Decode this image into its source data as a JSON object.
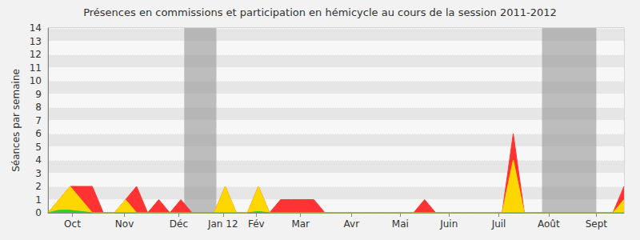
{
  "chart_data": {
    "type": "area",
    "title": "Présences en commissions et participation en hémicycle au cours de la session 2011-2012",
    "y_label": "Séances par semaine",
    "x": [
      0,
      1,
      2,
      3,
      4,
      5,
      6,
      7,
      8,
      9,
      10,
      11,
      12,
      13,
      14,
      15,
      16,
      17,
      18,
      19,
      20,
      21,
      22,
      23,
      24,
      25,
      26,
      27,
      28,
      29,
      30,
      31,
      32,
      33,
      34,
      35,
      36,
      37,
      38,
      39,
      40,
      41,
      42,
      43,
      44,
      45,
      46,
      47,
      48,
      49,
      50,
      51,
      52
    ],
    "xlim": [
      0,
      52
    ],
    "xticks": [
      {
        "value": 2.2,
        "label": "Oct"
      },
      {
        "value": 6.9,
        "label": "Nov"
      },
      {
        "value": 11.8,
        "label": "Déc"
      },
      {
        "value": 15.8,
        "label": "Jan 12"
      },
      {
        "value": 18.8,
        "label": "Fév"
      },
      {
        "value": 22.8,
        "label": "Mar"
      },
      {
        "value": 27.4,
        "label": "Avr"
      },
      {
        "value": 31.8,
        "label": "Mai"
      },
      {
        "value": 36.2,
        "label": "Juin"
      },
      {
        "value": 40.7,
        "label": "Juil"
      },
      {
        "value": 45.2,
        "label": "Août"
      },
      {
        "value": 49.5,
        "label": "Sept"
      }
    ],
    "ylim": [
      0,
      14
    ],
    "yticks": [
      0,
      1,
      2,
      3,
      4,
      5,
      6,
      7,
      8,
      9,
      10,
      11,
      12,
      13,
      14
    ],
    "grid": true,
    "stacked": false,
    "vacations": [
      [
        12.3,
        15.2
      ],
      [
        44.6,
        49.5
      ]
    ],
    "series": [
      {
        "color": "#ff3333",
        "values": [
          0,
          1,
          2,
          2,
          2,
          0,
          0,
          1,
          2,
          0,
          1,
          0,
          1,
          0,
          0,
          0,
          2,
          0,
          0,
          2,
          0,
          1,
          1,
          1,
          1,
          0,
          0,
          0,
          0,
          0,
          0,
          0,
          0,
          0,
          1,
          0,
          0,
          0,
          0,
          0,
          0,
          0,
          6,
          0,
          0,
          0,
          0,
          0,
          0,
          0,
          0,
          0,
          2
        ]
      },
      {
        "color": "#ffd700",
        "values": [
          0,
          1,
          2,
          1,
          0,
          0,
          0,
          1,
          0,
          0,
          0,
          0,
          0,
          0,
          0,
          0,
          2,
          0,
          0,
          2,
          0,
          0,
          0,
          0,
          0,
          0,
          0,
          0,
          0,
          0,
          0,
          0,
          0,
          0,
          0,
          0,
          0,
          0,
          0,
          0,
          0,
          0,
          4,
          0,
          0,
          0,
          0,
          0,
          0,
          0,
          0,
          0,
          1
        ]
      },
      {
        "color": "#33cc33",
        "values": [
          0,
          0.2,
          0.2,
          0.1,
          0,
          0,
          0,
          0,
          0,
          0,
          0,
          0,
          0,
          0,
          0,
          0,
          0,
          0,
          0,
          0.1,
          0,
          0,
          0,
          0,
          0,
          0,
          0,
          0,
          0,
          0,
          0,
          0,
          0,
          0,
          0,
          0,
          0,
          0,
          0,
          0,
          0,
          0,
          0,
          0,
          0,
          0,
          0,
          0,
          0,
          0,
          0,
          0,
          0
        ]
      }
    ]
  }
}
